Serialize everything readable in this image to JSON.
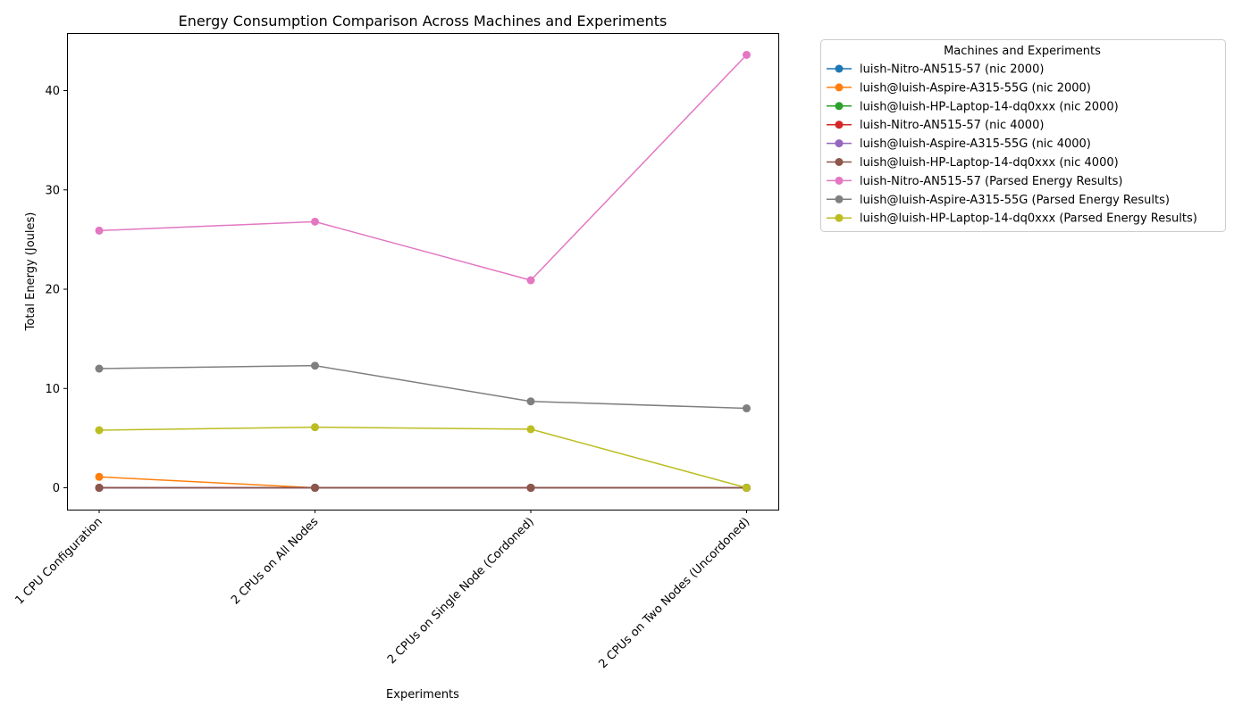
{
  "chart_data": {
    "type": "line",
    "title": "Energy Consumption Comparison Across Machines and Experiments",
    "xlabel": "Experiments",
    "ylabel": "Total Energy (Joules)",
    "categories": [
      "1 CPU Configuration",
      "2 CPUs on All Nodes",
      "2 CPUs on Single Node (Cordoned)",
      "2 CPUs on Two Nodes (Uncordoned)"
    ],
    "ylim": [
      -2.2,
      45.8
    ],
    "yticks": [
      0,
      10,
      20,
      30,
      40
    ],
    "grid": false,
    "legend": {
      "title": "Machines and Experiments",
      "placement": "outside-top-right"
    },
    "series": [
      {
        "name": "luish-Nitro-AN515-57 (nic 2000)",
        "color": "#1f77b4",
        "values": [
          0,
          0,
          0,
          0
        ]
      },
      {
        "name": "luish@luish-Aspire-A315-55G (nic 2000)",
        "color": "#ff7f0e",
        "values": [
          1.1,
          0,
          0,
          0
        ]
      },
      {
        "name": "luish@luish-HP-Laptop-14-dq0xxx (nic 2000)",
        "color": "#2ca02c",
        "values": [
          0,
          0,
          0,
          0
        ]
      },
      {
        "name": "luish-Nitro-AN515-57 (nic 4000)",
        "color": "#d62728",
        "values": [
          0,
          0,
          0,
          0
        ]
      },
      {
        "name": "luish@luish-Aspire-A315-55G (nic 4000)",
        "color": "#9467bd",
        "values": [
          0,
          0,
          0,
          0
        ]
      },
      {
        "name": "luish@luish-HP-Laptop-14-dq0xxx (nic 4000)",
        "color": "#8c564b",
        "values": [
          0,
          0,
          0,
          0
        ]
      },
      {
        "name": "luish-Nitro-AN515-57 (Parsed Energy Results)",
        "color": "#e377c2",
        "values": [
          25.9,
          26.8,
          20.9,
          43.6
        ]
      },
      {
        "name": "luish@luish-Aspire-A315-55G (Parsed Energy Results)",
        "color": "#7f7f7f",
        "values": [
          12.0,
          12.3,
          8.7,
          8.0
        ]
      },
      {
        "name": "luish@luish-HP-Laptop-14-dq0xxx (Parsed Energy Results)",
        "color": "#bcbd22",
        "values": [
          5.8,
          6.1,
          5.9,
          0
        ]
      }
    ]
  }
}
